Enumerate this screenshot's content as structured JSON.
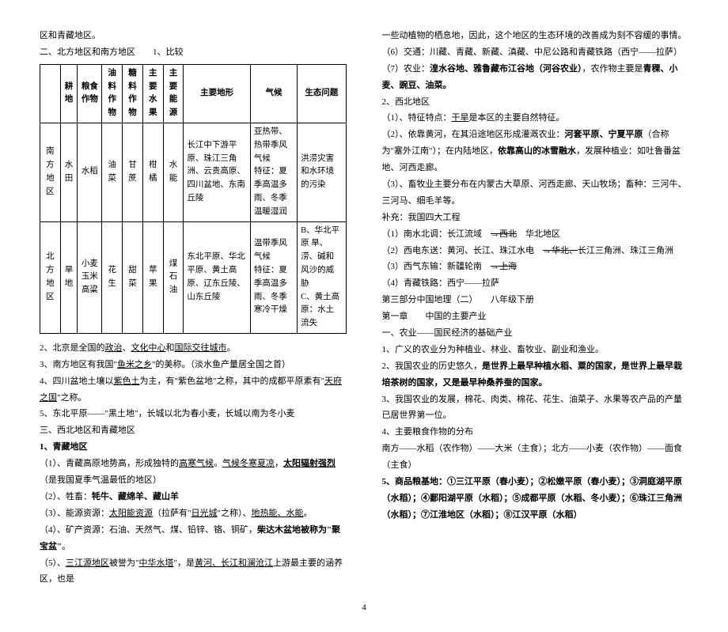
{
  "left": {
    "line1": "区和青藏地区。",
    "line2": "二、北方地区和南方地区　　1、比较",
    "table": {
      "headers": [
        "",
        "耕地",
        "粮食作物",
        "油料作物",
        "糖料作物",
        "主要水果",
        "主要能源",
        "主要地形",
        "气候",
        "生态问题"
      ],
      "rows": [
        {
          "region": "南方地区",
          "land": "水田",
          "grain": "水稻",
          "oil": "油菜",
          "sugar": "甘蔗",
          "fruit": "柑橘",
          "energy": "水能",
          "terrain": "长江中下游平原、珠江三角洲、云贵高原、四川盆地、东南丘陵",
          "climate": "亚热带、热带季风气候\n特征：夏季高温多雨、冬季温暖湿润",
          "eco": "洪涝灾害和水环境的污染"
        },
        {
          "region": "北方地区",
          "land": "旱地",
          "grain": "小麦 玉米 高粱",
          "oil": "花生",
          "sugar": "甜菜",
          "fruit": "苹果",
          "energy": "煤 石油",
          "terrain": "东北平原、华北平原、黄土高原、辽东丘陵、山东丘陵",
          "climate": "温带季风气候\n特征：夏季高温多雨、冬季寒冷干燥",
          "eco": "B、华北平原 旱、涝、碱和风沙的威胁\nC、黄土高原：水土流失"
        }
      ]
    },
    "p2": "2、北京是全国的",
    "p2u1": "政治",
    "p2m": "、",
    "p2u2": "文化中心",
    "p2m2": "和",
    "p2u3": "国际交往城市",
    "p2end": "。",
    "p3": "3、南方地区有我国\"",
    "p3u": "鱼米之乡",
    "p3end": "\"的美称。（淡水鱼产量居全国之首）",
    "p4a": "4、四川盆地土壤以",
    "p4u1": "紫色土",
    "p4b": "为主，有\"紫色盆地\"之称，其中的成都平原素有\"",
    "p4u2": "天府之国",
    "p4c": "\"之称。",
    "p5": "5、东北平原——\"黑土地\"，长城以北为春小麦，长城以南为冬小麦",
    "p6": "三、西北地区和青藏地区",
    "p7": "1、青藏地区",
    "p8a": "（1）、青藏高原地势高，形成独特的",
    "p8u1": "高寒气候",
    "p8b": "。",
    "p8u2": "气候冬寒夏凉",
    "p8c": "，",
    "p8u3": "太阳辐射强烈",
    "p8d": "（是我国夏季气温最低的地区）",
    "p9a": "（2）、牲畜：",
    "p9b": "牦牛、藏绵羊、藏山羊",
    "p10a": "（3）、能源资源：",
    "p10u1": "太阳能资源",
    "p10b": "（拉萨有\"",
    "p10u2": "日光城",
    "p10c": "\"之称）、",
    "p10u3": "地热能、水能",
    "p10d": "。",
    "p11a": "（4）、矿产资源：石油、天然气、煤、铅锌、铬、铜矿，",
    "p11b": "柴达木盆地被称为\"聚宝盆\"",
    "p11c": "。",
    "p12a": "（5）、",
    "p12u1": "三江源地区",
    "p12b": "被誉为\"",
    "p12u2": "中华水塔",
    "p12c": "\"，是",
    "p12u3": "黄河、长江和澜沧江",
    "p12d": "上游最主要的涵养区，也是"
  },
  "right": {
    "r1": "一些动植物的栖息地，因此，这个地区的生态环境的改善成为刻不容缓的事情。",
    "r2": "（6）交通：川藏、青藏、新藏、滇藏、中尼公路和青藏铁路（西宁——拉萨）",
    "r3a": "（7）农业：",
    "r3b": "湟水谷地、雅鲁藏布江谷地（河谷农业）",
    "r3c": "，农作物主要是",
    "r3d": "青稞、小麦、豌豆、油菜。",
    "r4": "2、西北地区",
    "r5a": "（1）、特征特点：",
    "r5u": "干旱",
    "r5b": "是本区的主要自然特征。",
    "r6a": "（2）、依靠黄河，在其沿途地区形成灌溉农业：",
    "r6b": "河套平原、宁夏平原",
    "r6c": "（合称为\"塞外江南\"）；在内陆地区，",
    "r6d": "依靠高山的冰雪融水",
    "r6e": "，发展种植业：如吐鲁番盆地、河西走廊。",
    "r7": "（3）、畜牧业主要分布在内蒙古大草原、河西走廊、天山牧场；畜种：三河牛、三河马、细毛羊等。",
    "r8": "补充：我国四大工程",
    "r9a": "（1）南水北调：长江流域　",
    "r9arr": "→西北",
    "r9b": "　华北地区",
    "r10a": "（2）西电东送：黄河、长江、珠江水电　",
    "r10arr": "→华北、",
    "r10b": "长江三角洲、珠江三角洲",
    "r11a": "（3）西气东输：新疆轮南　",
    "r11arr": "→上海",
    "r12": "（4）青藏铁路：西宁——拉萨",
    "r13": "第三部分中国地理（二）　　八年级下册",
    "r14": "第一章　　中国的主要产业",
    "r15": "一、农业——国民经济的基础产业",
    "r16": "1、广义的农业分为种植业、林业、畜牧业、副业和渔业。",
    "r17": "2、我国农业的历史悠久，",
    "r17b": "是世界上最早种植水稻、粟的国家，是世界上最早栽培茶树的国家，又是最早种桑养蚕的国家。",
    "r18": "3、我国农业的发展，棉花、肉类、棉花、花生、油菜子、水果等农产品的产量已居世界第一位。",
    "r19": "4、主要粮食作物的分布",
    "r20": "南方——水稻（农作物）——大米（主食）；北方——小麦（农作物）——面食（主食）",
    "r21": "5、商品粮基地：①三江平原（春小麦）；②松嫩平原（春小麦）；③洞庭湖平原（水稻）；④鄱阳湖平原（水稻）；⑤成都平原（水稻、冬小麦）；⑥珠江三角洲（水稻）；⑦江淮地区（水稻）；⑧江汉平原（水稻）"
  },
  "pagenum": "4"
}
